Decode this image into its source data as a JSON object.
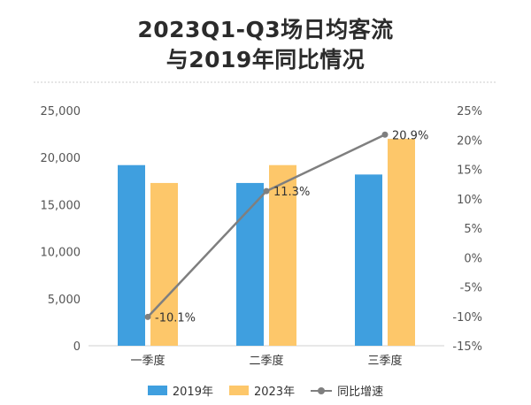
{
  "title_lines": [
    "2023Q1-Q3场日均客流",
    "与2019年同比情况"
  ],
  "colors": {
    "series_2019": "#3f9fdf",
    "series_2023": "#fdc76a",
    "growth_line": "#7f7f7f",
    "axis_text": "#555555",
    "grid": "#e6e6e6"
  },
  "chart_data": {
    "type": "bar",
    "categories": [
      "一季度",
      "二季度",
      "三季度"
    ],
    "series": [
      {
        "name": "2019年",
        "values": [
          19200,
          17300,
          18200
        ]
      },
      {
        "name": "2023年",
        "values": [
          17300,
          19200,
          22000
        ]
      }
    ],
    "line_series": {
      "name": "同比增速",
      "values": [
        -10.1,
        11.3,
        20.9
      ],
      "labels": [
        "-10.1%",
        "11.3%",
        "20.9%"
      ]
    },
    "ylim": [
      0,
      25000
    ],
    "yticks": [
      "0",
      "5,000",
      "10,000",
      "15,000",
      "20,000",
      "25,000"
    ],
    "y2lim": [
      -15,
      25
    ],
    "y2ticks": [
      "-15%",
      "-10%",
      "-5%",
      "0%",
      "5%",
      "10%",
      "15%",
      "20%",
      "25%"
    ],
    "legend_position": "bottom",
    "grid": false
  }
}
